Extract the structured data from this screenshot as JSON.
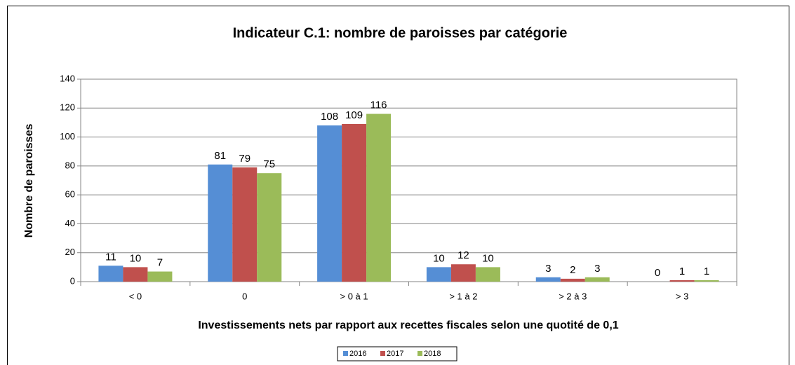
{
  "chart_data": {
    "type": "bar",
    "title": "Indicateur C.1: nombre de paroisses par catégorie",
    "x_label": "Investissements nets par rapport aux recettes fiscales selon une quotité de 0,1",
    "y_label": "Nombre de paroisses",
    "categories": [
      "< 0",
      "0",
      "> 0 à 1",
      "> 1 à 2",
      "> 2 à 3",
      "> 3"
    ],
    "series": [
      {
        "name": "2016",
        "color": "#558ed5",
        "values": [
          11,
          81,
          108,
          10,
          3,
          0
        ]
      },
      {
        "name": "2017",
        "color": "#c0504d",
        "values": [
          10,
          79,
          109,
          12,
          2,
          1
        ]
      },
      {
        "name": "2018",
        "color": "#9bbb59",
        "values": [
          7,
          75,
          116,
          10,
          3,
          1
        ]
      }
    ],
    "ylim": [
      0,
      140
    ],
    "yticks": [
      0,
      20,
      40,
      60,
      80,
      100,
      120,
      140
    ],
    "grid": true,
    "legend": "bottom"
  }
}
